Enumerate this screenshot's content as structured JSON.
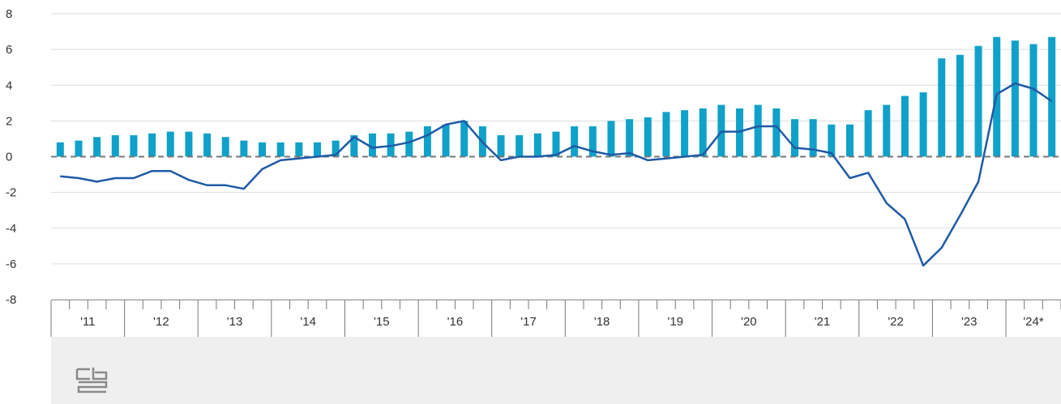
{
  "chart_data": {
    "type": "bar+line",
    "y_axis": {
      "ticks": [
        "8",
        "6",
        "4",
        "2",
        "0",
        "-2",
        "-4",
        "-6",
        "-8"
      ],
      "ylim": [
        -8,
        8
      ]
    },
    "x_axis": {
      "year_labels": [
        "'11",
        "'12",
        "'13",
        "'14",
        "'15",
        "'16",
        "'17",
        "'18",
        "'19",
        "'20",
        "'21",
        "'22",
        "'23",
        "'24*"
      ]
    },
    "colors": {
      "bars": "#0fa1c9",
      "line": "#1f5aa5",
      "grid": "#dddddd",
      "zero_line": "#777777",
      "footer": "#efefef"
    },
    "series": [
      {
        "type": "bar",
        "values": [
          0.8,
          0.9,
          1.1,
          1.2,
          1.2,
          1.3,
          1.4,
          1.4,
          1.3,
          1.1,
          0.9,
          0.8,
          0.8,
          0.8,
          0.8,
          0.9,
          1.2,
          1.3,
          1.3,
          1.4,
          1.7,
          1.8,
          2.0,
          1.7,
          1.2,
          1.2,
          1.3,
          1.4,
          1.7,
          1.7,
          2.0,
          2.1,
          2.2,
          2.5,
          2.6,
          2.7,
          2.9,
          2.7,
          2.9,
          2.7,
          2.1,
          2.1,
          1.8,
          1.8,
          2.6,
          2.9,
          3.4,
          3.6,
          5.5,
          5.7,
          6.2,
          6.7,
          6.5,
          6.3,
          6.7
        ]
      },
      {
        "type": "line",
        "values": [
          -1.1,
          -1.2,
          -1.4,
          -1.2,
          -1.2,
          -0.8,
          -0.8,
          -1.3,
          -1.6,
          -1.6,
          -1.8,
          -0.7,
          -0.2,
          -0.1,
          0.0,
          0.1,
          1.1,
          0.5,
          0.6,
          0.8,
          1.2,
          1.8,
          2.0,
          0.8,
          -0.2,
          0.0,
          0.0,
          0.1,
          0.6,
          0.3,
          0.1,
          0.2,
          -0.2,
          -0.1,
          0.0,
          0.1,
          1.4,
          1.4,
          1.7,
          1.7,
          0.5,
          0.4,
          0.2,
          -1.2,
          -0.9,
          -2.6,
          -3.5,
          -6.1,
          -5.1,
          -3.3,
          -1.4,
          3.5,
          4.1,
          3.8,
          3.1
        ]
      }
    ]
  },
  "logo": {
    "icon": "cbs-logo-icon"
  }
}
